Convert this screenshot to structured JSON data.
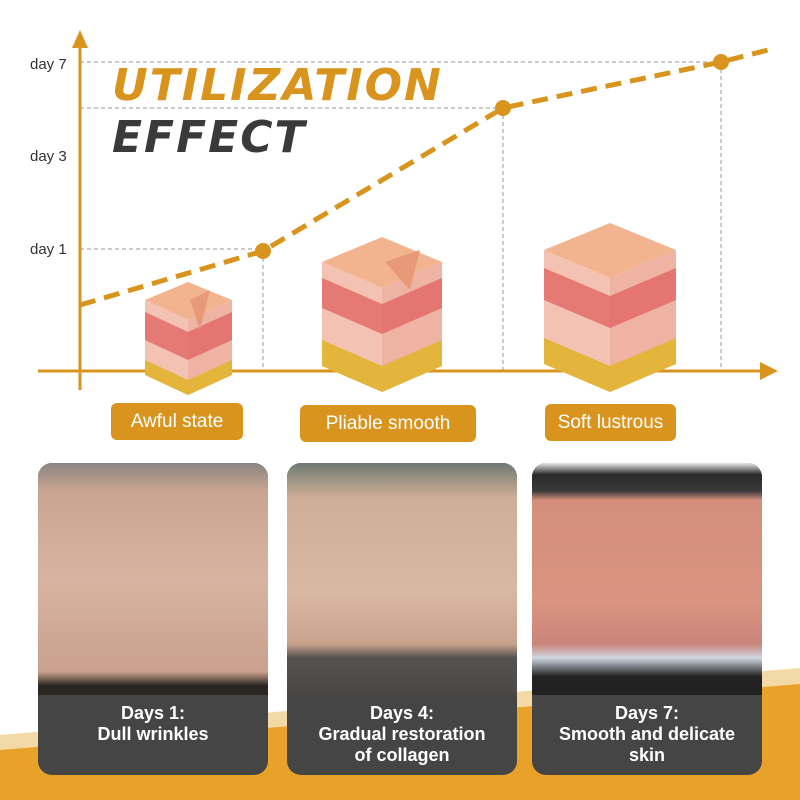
{
  "heading": {
    "line1": "UTILIZATION",
    "line2": "EFFECT"
  },
  "colors": {
    "accent": "#d9941e",
    "dark": "#3a3a3a",
    "caption_bg": "#454545",
    "band": "#e8a22a"
  },
  "chart_data": {
    "type": "line",
    "y_tick_labels": [
      "day 1",
      "day 3",
      "day 7"
    ],
    "grid": "dashed guides",
    "stages": [
      "Awful state",
      "Pliable smooth",
      "Soft lustrous"
    ]
  },
  "stages": [
    {
      "label": "Awful state"
    },
    {
      "label": "Pliable smooth"
    },
    {
      "label": "Soft lustrous"
    }
  ],
  "cards": [
    {
      "day": "Days 1:",
      "desc": "Dull wrinkles",
      "desc2": ""
    },
    {
      "day": "Days 4:",
      "desc": "Gradual restoration",
      "desc2": "of collagen"
    },
    {
      "day": "Days 7:",
      "desc": "Smooth and delicate",
      "desc2": "skin"
    }
  ]
}
